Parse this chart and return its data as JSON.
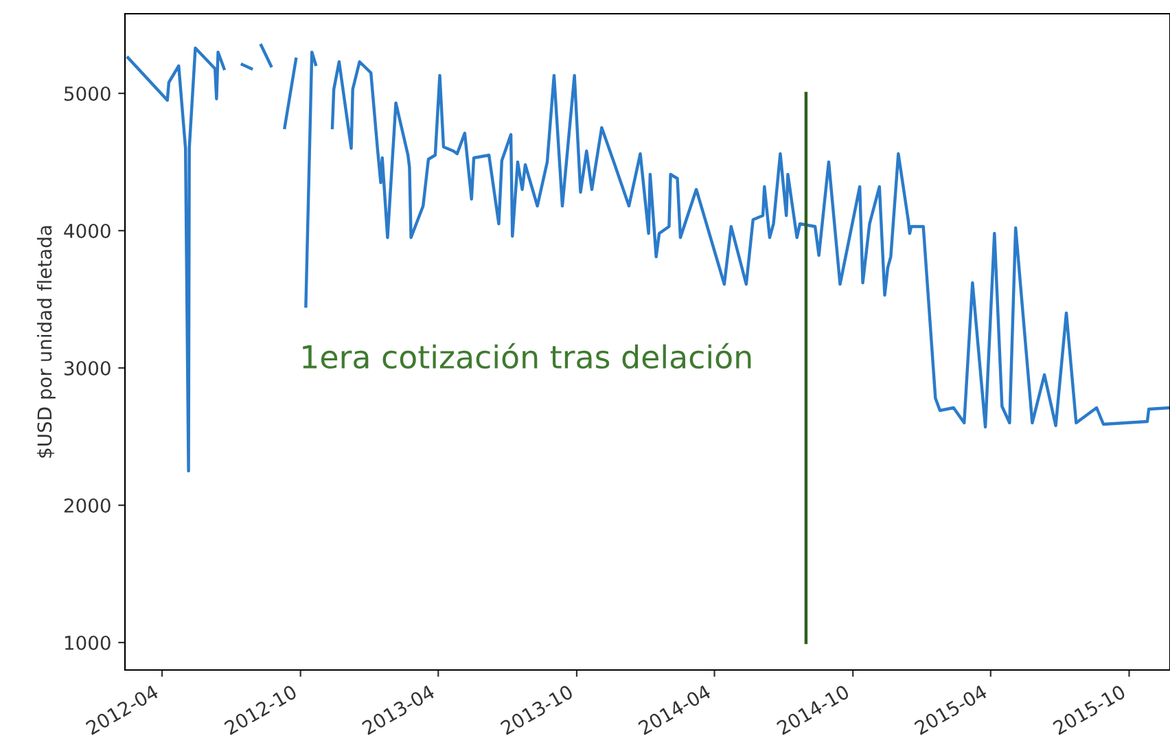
{
  "chart_data": {
    "type": "line",
    "ylabel": "$USD por unidad fletada",
    "xlim": [
      "2012-02-12",
      "2015-11-24"
    ],
    "ylim": [
      800,
      5580
    ],
    "xticks": [
      "2012-04",
      "2012-10",
      "2013-04",
      "2013-10",
      "2014-04",
      "2014-10",
      "2015-04",
      "2015-10"
    ],
    "yticks": [
      1000,
      2000,
      3000,
      4000,
      5000
    ],
    "grid": false,
    "series": [
      {
        "color": "#2b7bc9",
        "x": [
          "2012-02-16",
          "2012-04-08",
          "2012-04-10",
          "2012-04-23",
          "2012-05-02",
          "2012-05-06",
          "2012-05-07",
          "2012-05-15",
          "2012-06-10",
          "2012-06-12",
          "2012-06-14",
          "2012-06-22",
          "2012-06-29",
          "2012-07-16",
          "2012-07-28",
          "2012-07-30",
          "2012-08-10",
          "2012-08-23",
          "2012-08-28",
          "2012-09-10",
          "2012-09-25",
          "2012-09-28",
          "2012-10-08",
          "2012-10-16",
          "2012-10-21",
          "2012-10-25",
          "2012-11-12",
          "2012-11-14",
          "2012-11-21",
          "2012-12-07",
          "2012-12-09",
          "2012-12-18",
          "2013-01-02",
          "2013-01-11",
          "2013-01-15",
          "2013-01-17",
          "2013-01-24",
          "2013-02-04",
          "2013-02-20",
          "2013-02-22",
          "2013-02-24",
          "2013-03-12",
          "2013-03-19",
          "2013-03-28",
          "2013-04-03",
          "2013-04-08",
          "2013-04-21",
          "2013-04-26",
          "2013-05-06",
          "2013-05-15",
          "2013-05-18",
          "2013-06-07",
          "2013-06-20",
          "2013-06-24",
          "2013-07-06",
          "2013-07-08",
          "2013-07-15",
          "2013-07-21",
          "2013-07-25",
          "2013-08-10",
          "2013-08-23",
          "2013-09-01",
          "2013-09-12",
          "2013-09-28",
          "2013-10-06",
          "2013-10-14",
          "2013-10-21",
          "2013-11-03",
          "2013-11-19",
          "2013-12-09",
          "2013-12-24",
          "2014-01-04",
          "2014-01-06",
          "2014-01-14",
          "2014-01-18",
          "2014-01-31",
          "2014-02-02",
          "2014-02-11",
          "2014-02-15",
          "2014-03-08",
          "2014-04-14",
          "2014-04-23",
          "2014-05-13",
          "2014-05-22",
          "2014-06-04",
          "2014-06-06",
          "2014-06-13",
          "2014-06-18",
          "2014-06-27",
          "2014-07-05",
          "2014-07-07",
          "2014-07-19",
          "2014-07-23",
          "2014-08-12",
          "2014-08-17",
          "2014-08-30",
          "2014-09-14",
          "2014-10-10",
          "2014-10-14",
          "2014-10-23",
          "2014-11-05",
          "2014-11-12",
          "2014-11-16",
          "2014-11-20",
          "2014-11-30",
          "2014-12-13",
          "2014-12-15",
          "2014-12-17",
          "2015-01-02",
          "2015-01-18",
          "2015-01-24",
          "2015-02-11",
          "2015-02-25",
          "2015-03-08",
          "2015-03-25",
          "2015-04-06",
          "2015-04-16",
          "2015-04-26",
          "2015-05-04",
          "2015-05-26",
          "2015-06-11",
          "2015-06-26",
          "2015-07-10",
          "2015-07-23",
          "2015-08-19",
          "2015-08-28",
          "2015-10-25",
          "2015-10-27",
          "2015-11-24"
        ],
        "values": [
          5260,
          4950,
          5080,
          5200,
          4600,
          2250,
          4600,
          5330,
          5180,
          4960,
          5300,
          5180,
          null,
          5210,
          5180,
          null,
          5350,
          5200,
          null,
          4750,
          5250,
          null,
          3450,
          5300,
          5210,
          null,
          4750,
          5030,
          5230,
          4600,
          5030,
          5230,
          5150,
          4580,
          4350,
          4530,
          3950,
          4930,
          4550,
          4460,
          3950,
          4180,
          4520,
          4550,
          5130,
          4610,
          4580,
          4560,
          4710,
          4230,
          4530,
          4550,
          4050,
          4510,
          4700,
          3960,
          4500,
          4300,
          4480,
          4180,
          4500,
          5130,
          4180,
          5130,
          4280,
          4580,
          4300,
          4750,
          4500,
          4180,
          4560,
          3980,
          4410,
          3810,
          3980,
          4030,
          4410,
          4380,
          3950,
          4300,
          3610,
          4030,
          3610,
          4080,
          4110,
          4320,
          3950,
          4050,
          4560,
          4110,
          4410,
          3950,
          4050,
          4030,
          3820,
          4500,
          3610,
          4320,
          3620,
          4050,
          4320,
          3530,
          3730,
          3810,
          4560,
          4080,
          3980,
          4030,
          4030,
          2780,
          2690,
          2710,
          2600,
          3620,
          2570,
          3980,
          2720,
          2600,
          4020,
          2600,
          2950,
          2580,
          3400,
          2600,
          2710,
          2590,
          2610,
          2700,
          2710
        ]
      },
      {
        "color": "#2f5f1f",
        "x": [
          "2014-07-31",
          "2014-07-31"
        ],
        "values": [
          1000,
          5000
        ]
      }
    ],
    "annotations": [
      "1era cotización tras delación"
    ]
  }
}
